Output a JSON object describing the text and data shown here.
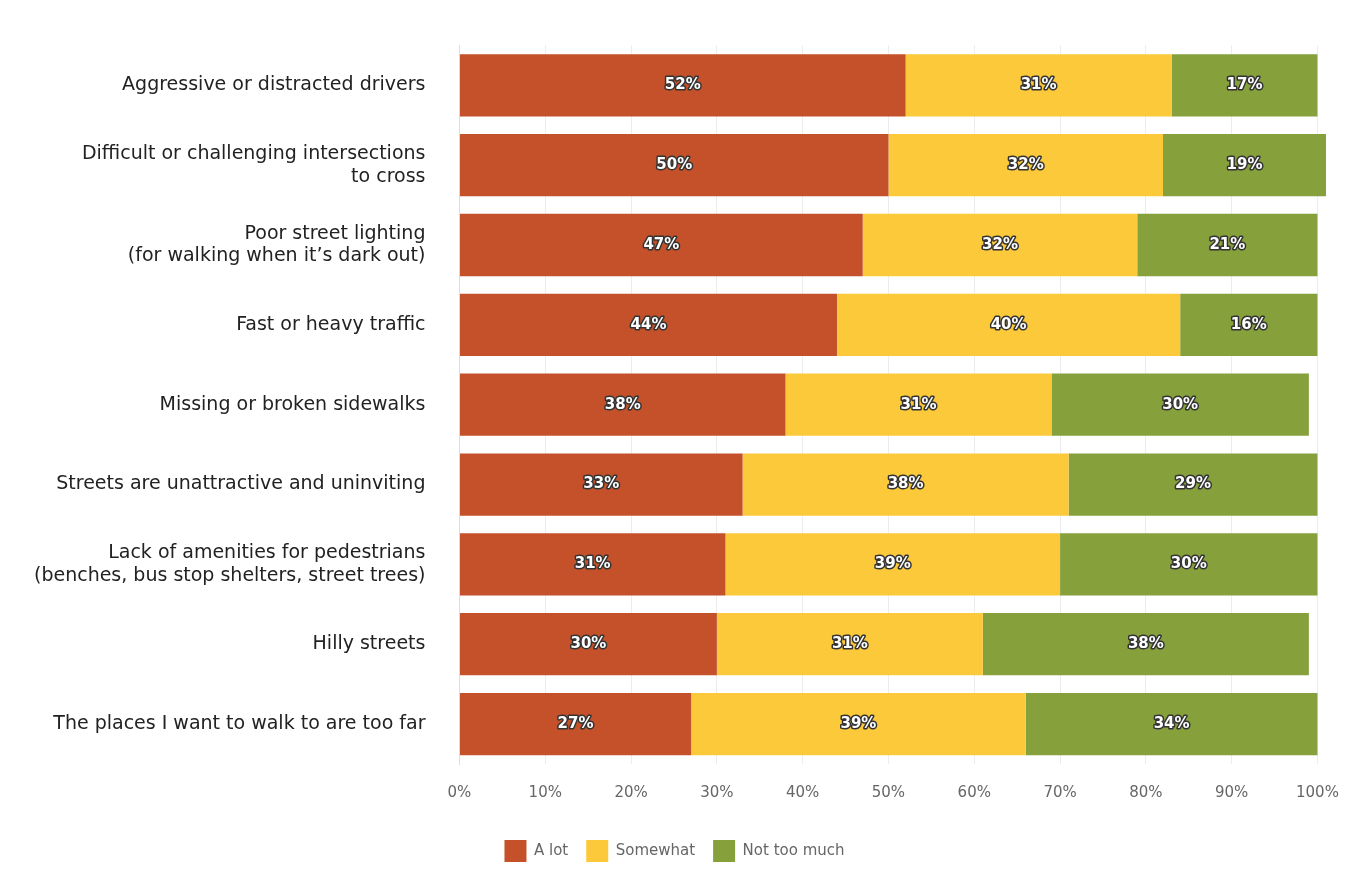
{
  "chart_data": {
    "type": "bar",
    "orientation": "horizontal",
    "stacked": true,
    "categories": [
      "Aggressive or distracted drivers",
      "Difficult or challenging intersections\nto cross",
      "Poor street lighting\n(for walking when it’s dark out)",
      "Fast or heavy traffic",
      "Missing or broken sidewalks",
      "Streets are unattractive and uninviting",
      "Lack of amenities for pedestrians\n(benches, bus stop shelters, street trees)",
      "Hilly streets",
      "The places I want to walk to are too far"
    ],
    "series": [
      {
        "name": "A lot",
        "color": "#c4512a",
        "values": [
          52,
          50,
          47,
          44,
          38,
          33,
          31,
          30,
          27
        ],
        "value_labels": [
          "52%",
          "50%",
          "47%",
          "44%",
          "38%",
          "33%",
          "31%",
          "30%",
          "27%"
        ]
      },
      {
        "name": "Somewhat",
        "color": "#fcc93a",
        "values": [
          31,
          32,
          32,
          40,
          31,
          38,
          39,
          31,
          39
        ],
        "value_labels": [
          "31%",
          "32%",
          "32%",
          "40%",
          "31%",
          "38%",
          "39%",
          "31%",
          "39%"
        ]
      },
      {
        "name": "Not too much",
        "color": "#86a03c",
        "values": [
          17,
          19,
          21,
          16,
          30,
          29,
          30,
          38,
          34
        ],
        "value_labels": [
          "17%",
          "19%",
          "21%",
          "16%",
          "30%",
          "29%",
          "30%",
          "38%",
          "34%"
        ]
      }
    ],
    "xlim": [
      0,
      101
    ],
    "xticks": [
      {
        "value": 0,
        "label": "0%"
      },
      {
        "value": 10,
        "label": "10%"
      },
      {
        "value": 20,
        "label": "20%"
      },
      {
        "value": 30,
        "label": "30%"
      },
      {
        "value": 40,
        "label": "40%"
      },
      {
        "value": 50,
        "label": "50%"
      },
      {
        "value": 60,
        "label": "60%"
      },
      {
        "value": 70,
        "label": "70%"
      },
      {
        "value": 80,
        "label": "80%"
      },
      {
        "value": 90,
        "label": "90%"
      },
      {
        "value": 100,
        "label": "100%"
      }
    ],
    "grid": "x",
    "legend": "bottom"
  }
}
